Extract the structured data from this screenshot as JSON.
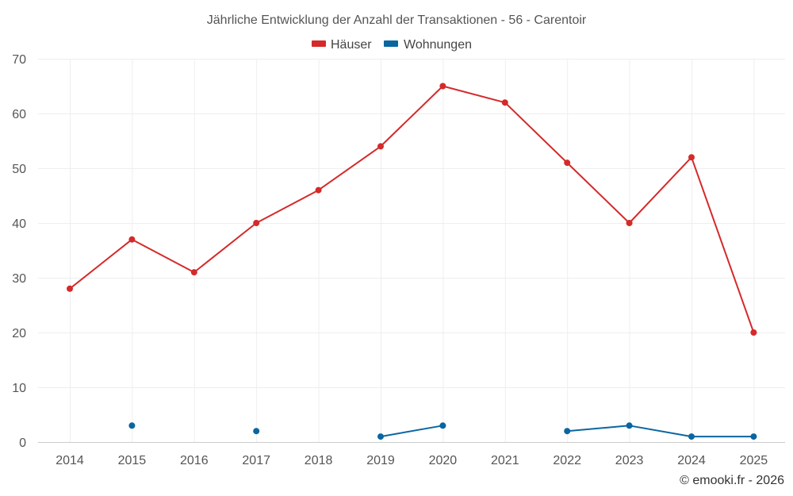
{
  "chart_data": {
    "type": "line",
    "title": "Jährliche Entwicklung der Anzahl der Transaktionen - 56 - Carentoir",
    "categories": [
      "2014",
      "2015",
      "2016",
      "2017",
      "2018",
      "2019",
      "2020",
      "2021",
      "2022",
      "2023",
      "2024",
      "2025"
    ],
    "yticks": [
      "0",
      "10",
      "20",
      "30",
      "40",
      "50",
      "60",
      "70"
    ],
    "ylim": [
      0,
      70
    ],
    "grid": true,
    "legend_position": "top-center",
    "series": [
      {
        "name": "Häuser",
        "color": "#d42a2a",
        "values": [
          28,
          37,
          31,
          40,
          46,
          54,
          65,
          62,
          51,
          40,
          52,
          20
        ]
      },
      {
        "name": "Wohnungen",
        "color": "#0a66a0",
        "values": [
          null,
          3,
          null,
          2,
          null,
          1,
          3,
          null,
          2,
          3,
          1,
          1
        ]
      }
    ],
    "credit": "© emooki.fr - 2026"
  }
}
